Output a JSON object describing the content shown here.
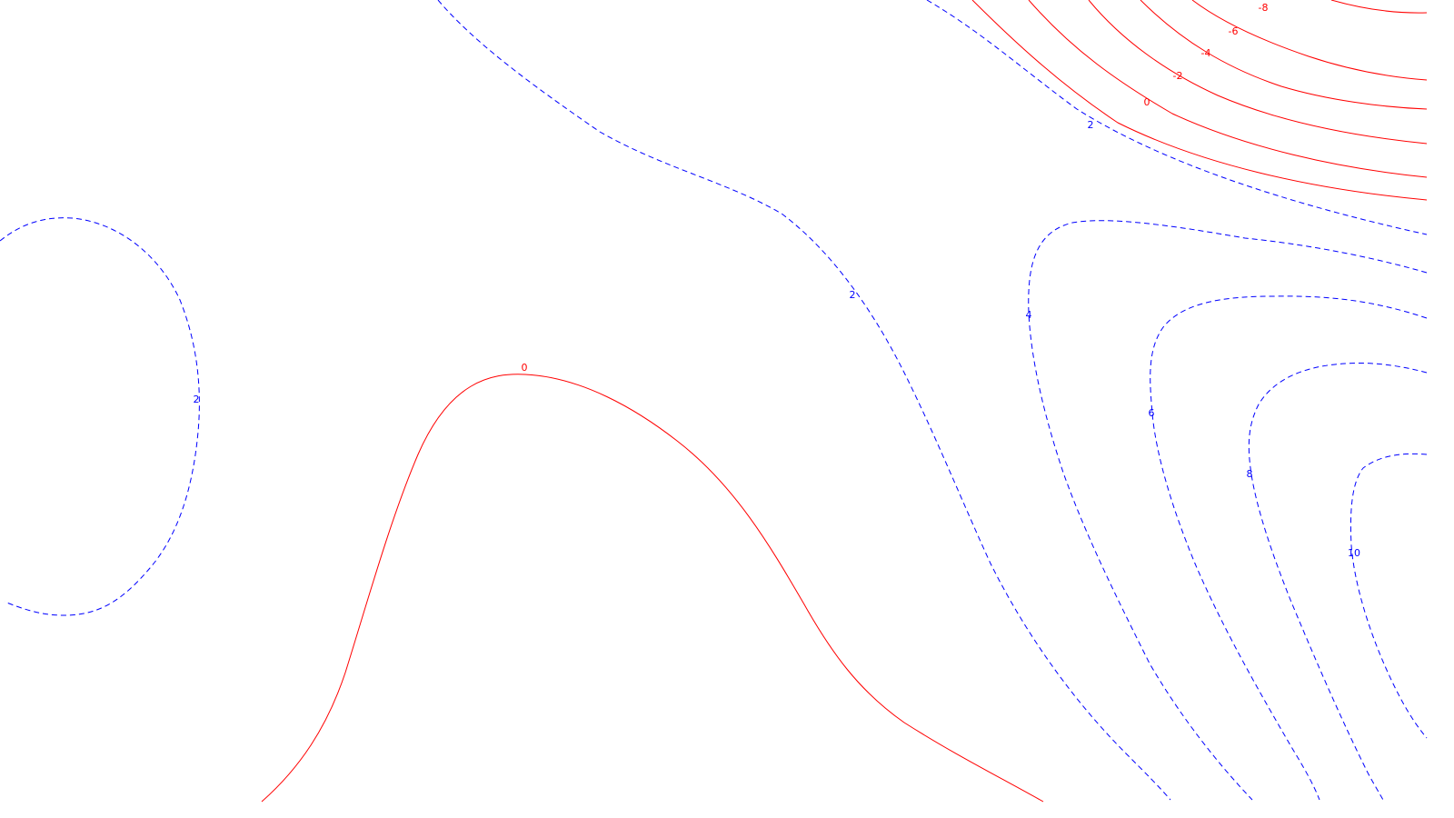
{
  "plot": {
    "type": "contour",
    "colors": {
      "negative_or_zero": "#ff0000",
      "positive": "#0000ff",
      "background": "#ffffff"
    },
    "line_styles": {
      "negative_or_zero": "solid",
      "positive": "dashed"
    },
    "levels_labeled": [
      "-8",
      "-6",
      "-4",
      "-2",
      "0",
      "2",
      "4",
      "6",
      "8",
      "10"
    ]
  },
  "labels": {
    "neg8": "-8",
    "neg6": "-6",
    "neg4": "-4",
    "neg2": "-2",
    "zero_top": "0",
    "zero_bottom": "0",
    "pos2_top": "2",
    "pos2_mid": "2",
    "pos2_left": "2",
    "pos4": "4",
    "pos6": "6",
    "pos8": "8",
    "pos10": "10"
  }
}
